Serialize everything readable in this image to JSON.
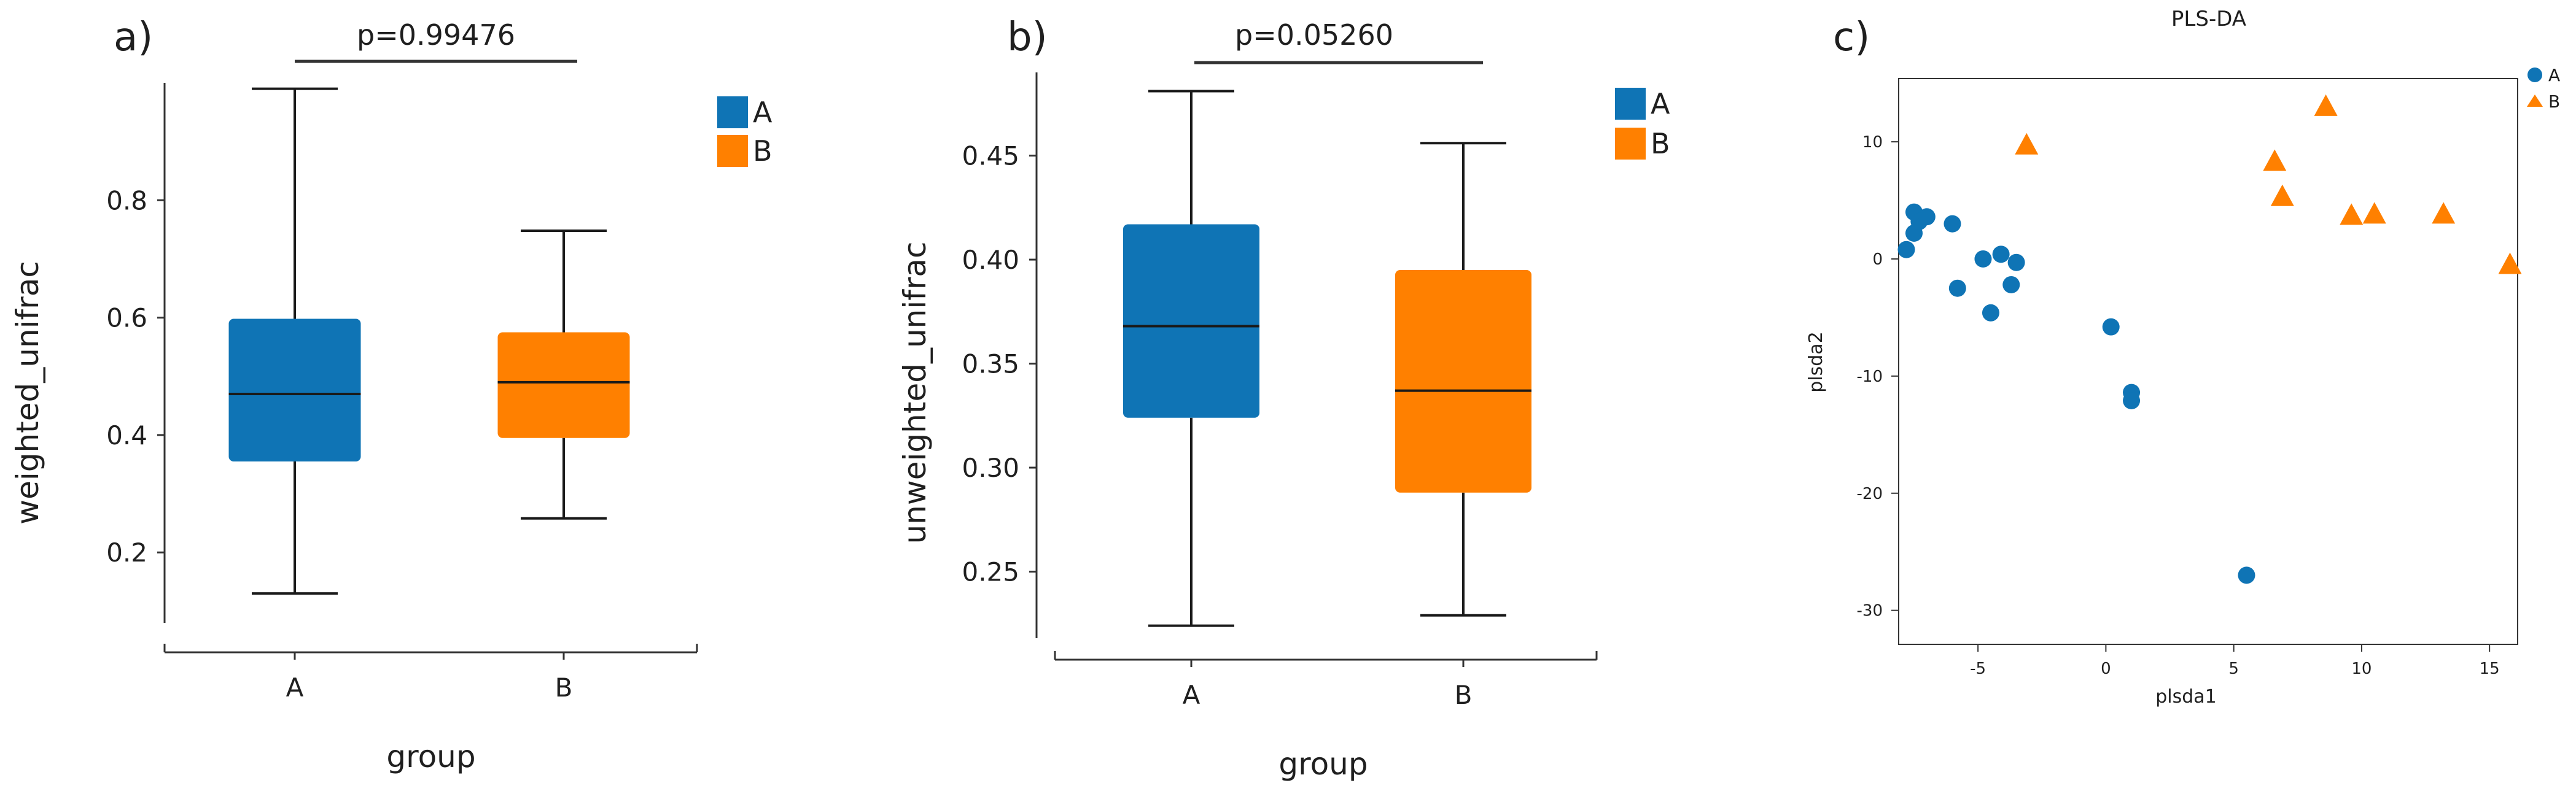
{
  "colors": {
    "A": "#0f74b5",
    "B": "#ff8000",
    "axis": "#333333",
    "text": "#1f1f1f"
  },
  "chart_data": [
    {
      "type": "box",
      "panel_label": "a)",
      "annotation": "p=0.99476",
      "xlabel": "group",
      "ylabel": "weighted_unifrac",
      "ylim": [
        0.08,
        1.0
      ],
      "yticks": [
        0.2,
        0.4,
        0.6,
        0.8
      ],
      "ytick_labels": [
        "0.2",
        "0.4",
        "0.6",
        "0.8"
      ],
      "categories": [
        "A",
        "B"
      ],
      "boxes": [
        {
          "group": "A",
          "min": 0.13,
          "q1": 0.355,
          "median": 0.47,
          "q3": 0.598,
          "max": 0.99
        },
        {
          "group": "B",
          "min": 0.258,
          "q1": 0.395,
          "median": 0.49,
          "q3": 0.575,
          "max": 0.748
        }
      ],
      "legend": [
        {
          "label": "A",
          "color": "#0f74b5"
        },
        {
          "label": "B",
          "color": "#ff8000"
        }
      ],
      "legend_position": "top-right"
    },
    {
      "type": "box",
      "panel_label": "b)",
      "annotation": "p=0.05260",
      "xlabel": "group",
      "ylabel": "unweighted_unifrac",
      "ylim": [
        0.218,
        0.49
      ],
      "yticks": [
        0.25,
        0.3,
        0.35,
        0.4,
        0.45
      ],
      "ytick_labels": [
        "0.25",
        "0.30",
        "0.35",
        "0.40",
        "0.45"
      ],
      "categories": [
        "A",
        "B"
      ],
      "boxes": [
        {
          "group": "A",
          "min": 0.224,
          "q1": 0.324,
          "median": 0.368,
          "q3": 0.417,
          "max": 0.481
        },
        {
          "group": "B",
          "min": 0.229,
          "q1": 0.288,
          "median": 0.337,
          "q3": 0.395,
          "max": 0.456
        }
      ],
      "legend": [
        {
          "label": "A",
          "color": "#0f74b5"
        },
        {
          "label": "B",
          "color": "#ff8000"
        }
      ],
      "legend_position": "top-right"
    },
    {
      "type": "scatter",
      "panel_label": "c)",
      "title": "PLS-DA",
      "xlabel": "plsda1",
      "ylabel": "plsda2",
      "xlim": [
        -8.1,
        16.1
      ],
      "ylim": [
        -32.9,
        15.4
      ],
      "xticks": [
        -5,
        0,
        5,
        10,
        15
      ],
      "xtick_labels": [
        "-5",
        "0",
        "5",
        "10",
        "15"
      ],
      "yticks": [
        -30,
        -20,
        -10,
        0,
        10
      ],
      "ytick_labels": [
        "-30",
        "-20",
        "-10",
        "0",
        "10"
      ],
      "legend_position": "top-right",
      "series": [
        {
          "name": "A",
          "marker": "circle",
          "color": "#0f74b5",
          "points": [
            [
              -7.8,
              0.8
            ],
            [
              -7.5,
              2.2
            ],
            [
              -7.5,
              4.0
            ],
            [
              -7.3,
              3.2
            ],
            [
              -7.0,
              3.6
            ],
            [
              -6.0,
              3.0
            ],
            [
              -5.8,
              -2.5
            ],
            [
              -4.8,
              0.0
            ],
            [
              -4.5,
              -4.6
            ],
            [
              -4.1,
              0.4
            ],
            [
              -3.7,
              -2.2
            ],
            [
              -3.5,
              -0.3
            ],
            [
              0.2,
              -5.8
            ],
            [
              1.0,
              -11.4
            ],
            [
              1.0,
              -12.1
            ],
            [
              5.5,
              -27.0
            ]
          ]
        },
        {
          "name": "B",
          "marker": "triangle",
          "color": "#ff8000",
          "points": [
            [
              -3.1,
              9.7
            ],
            [
              6.6,
              8.3
            ],
            [
              6.9,
              5.3
            ],
            [
              8.6,
              13.0
            ],
            [
              9.6,
              3.7
            ],
            [
              10.5,
              3.8
            ],
            [
              13.2,
              3.8
            ],
            [
              15.8,
              -0.5
            ]
          ]
        }
      ]
    }
  ]
}
